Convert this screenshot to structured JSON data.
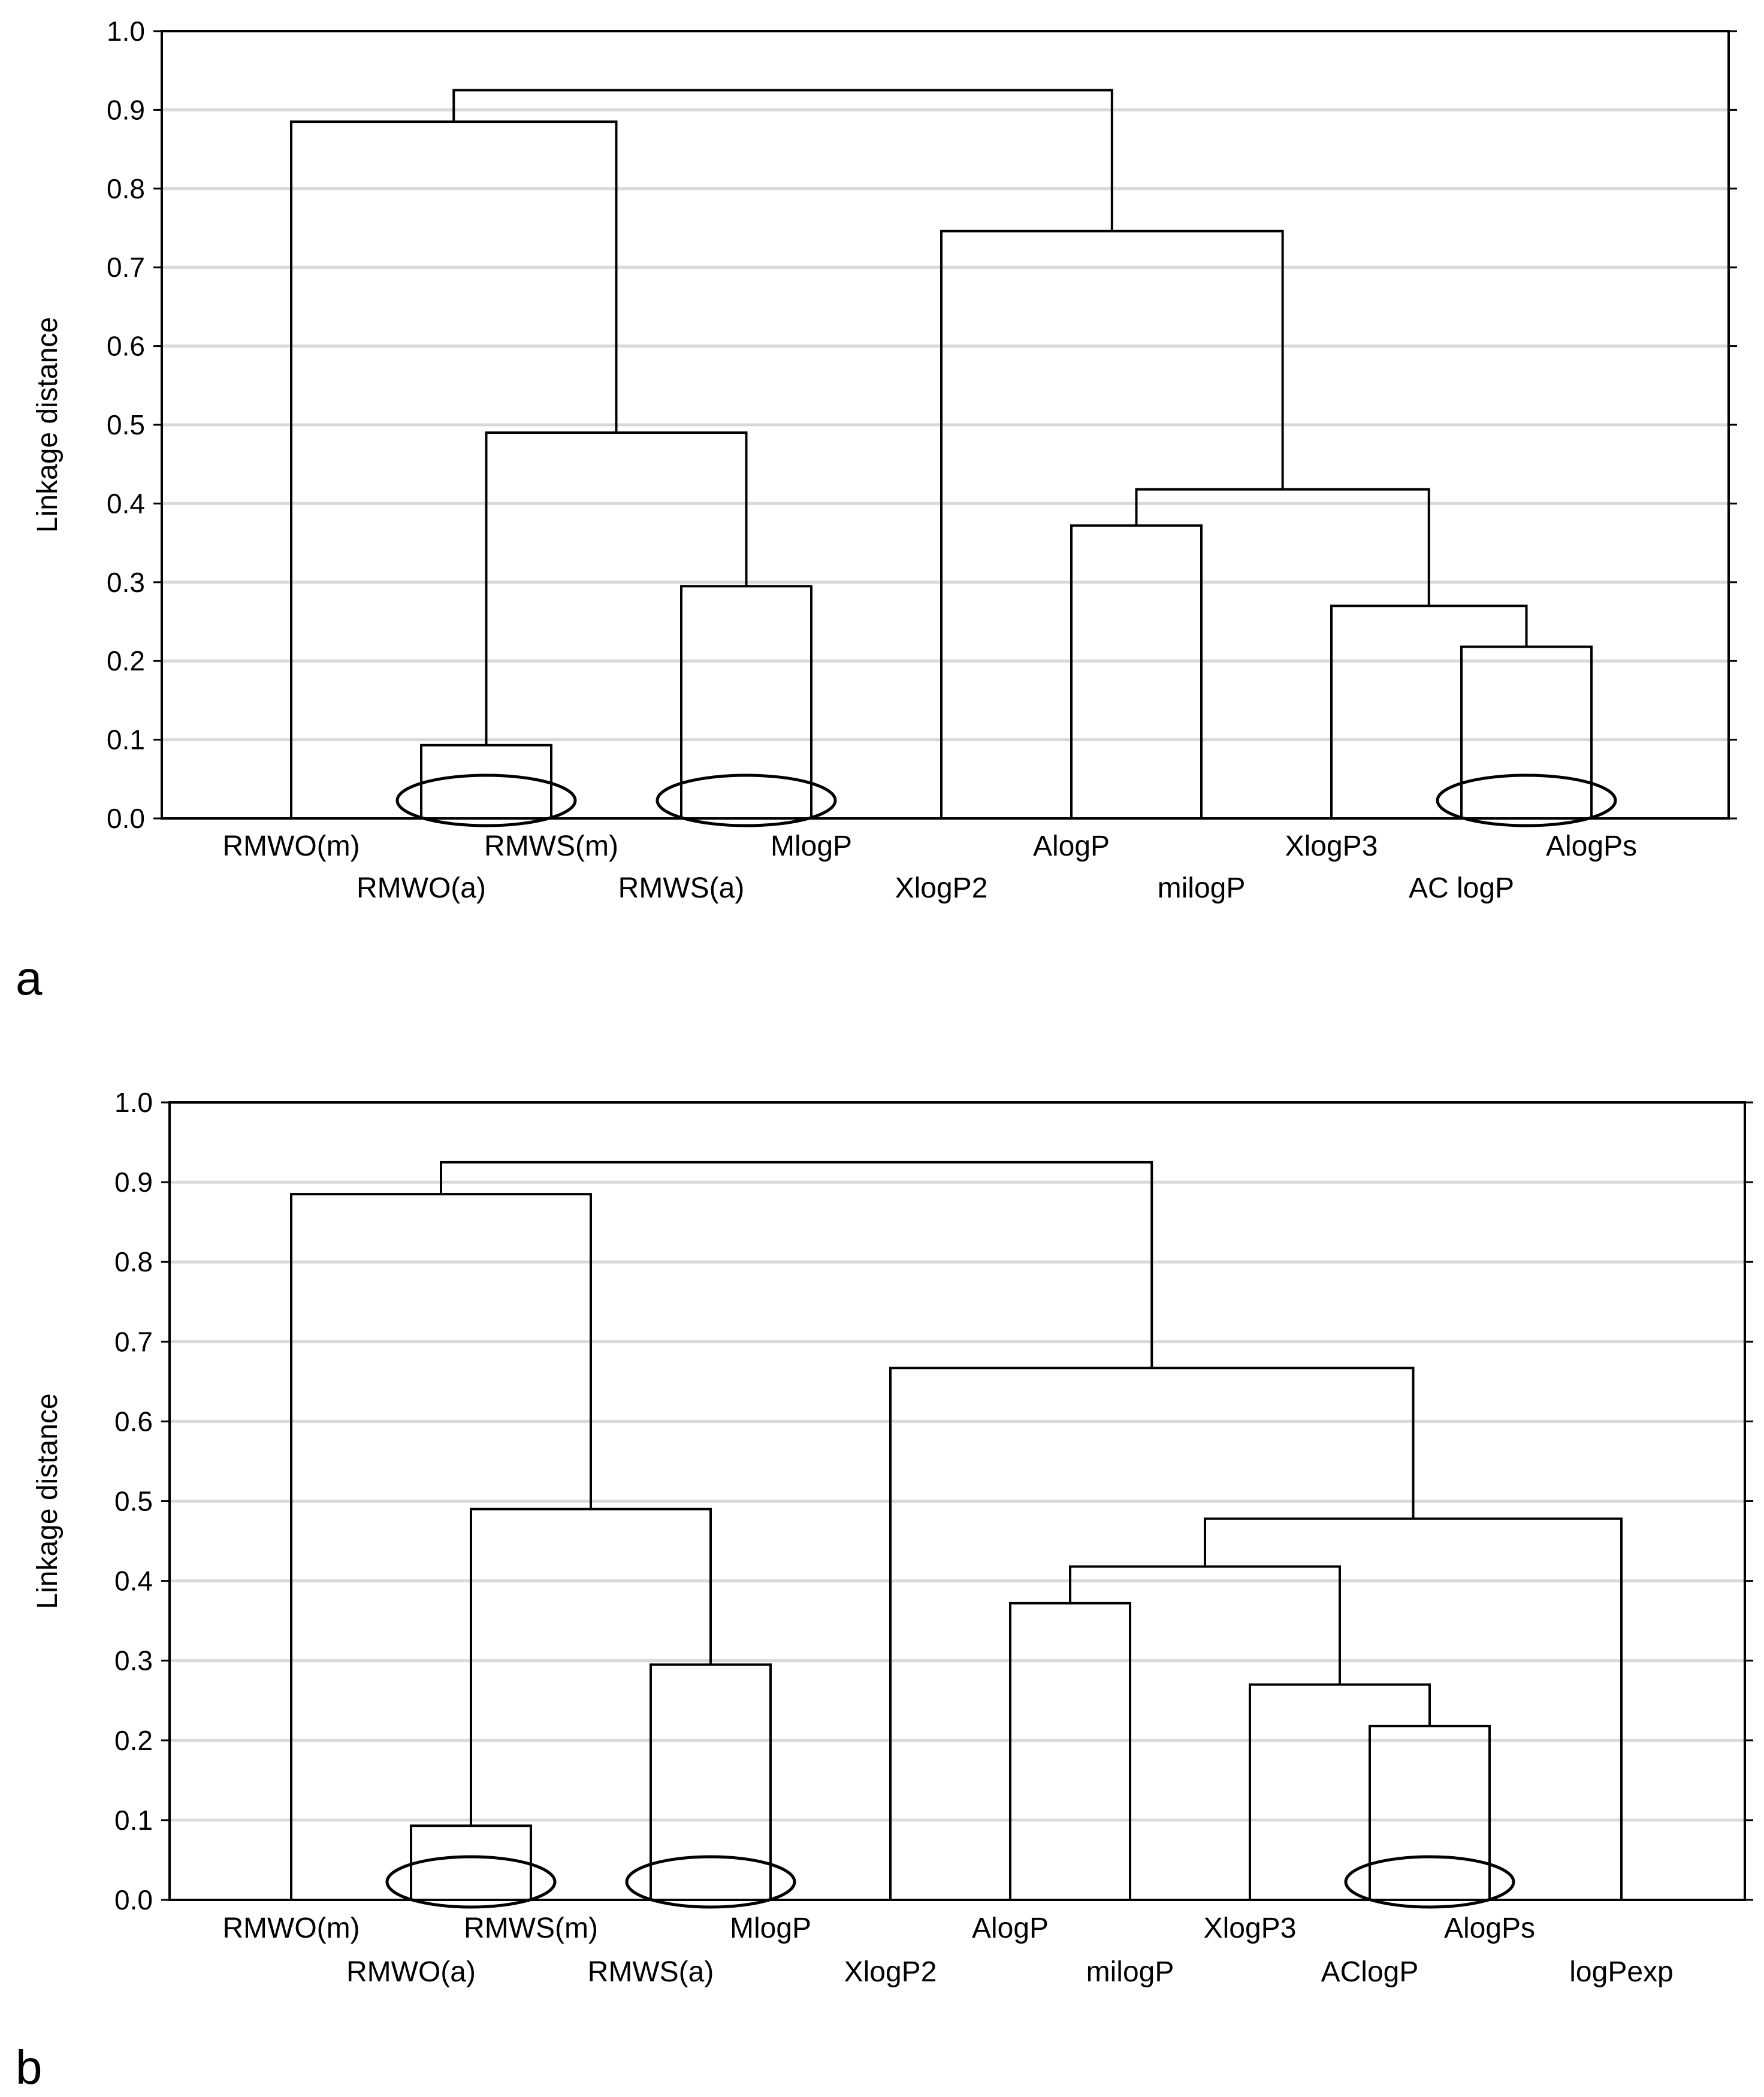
{
  "chart_data": [
    {
      "type": "dendrogram",
      "panel_label": "a",
      "ylabel": "Linkage distance",
      "ylim": [
        0.0,
        1.0
      ],
      "yticks": [
        "0.0",
        "0.1",
        "0.2",
        "0.3",
        "0.4",
        "0.5",
        "0.6",
        "0.7",
        "0.8",
        "0.9",
        "1.0"
      ],
      "grid": true,
      "leaves": [
        "RMWO(m)",
        "RMWO(a)",
        "RMWS(m)",
        "RMWS(a)",
        "MlogP",
        "XlogP2",
        "AlogP",
        "milogP",
        "XlogP3",
        "AC logP",
        "AlogPs"
      ],
      "merges": [
        {
          "left": 1,
          "right": 2,
          "height": 0.093
        },
        {
          "left": 3,
          "right": 4,
          "height": 0.295
        },
        {
          "left": 9,
          "right": 10,
          "height": 0.218
        },
        {
          "left": 8,
          "right": "c2",
          "height": 0.27
        },
        {
          "left": 6,
          "right": 7,
          "height": 0.372
        },
        {
          "left": "c4",
          "right": "c3",
          "height": 0.418
        },
        {
          "left": "c0",
          "right": "c1",
          "height": 0.49
        },
        {
          "left": 5,
          "right": "c5",
          "height": 0.746
        },
        {
          "left": 0,
          "right": "c6",
          "height": 0.885
        },
        {
          "left": "c8",
          "right": "c7",
          "height": 0.925
        }
      ],
      "highlighted_pairs": [
        [
          1,
          2
        ],
        [
          3,
          4
        ],
        [
          9,
          10
        ]
      ]
    },
    {
      "type": "dendrogram",
      "panel_label": "b",
      "ylabel": "Linkage distance",
      "ylim": [
        0.0,
        1.0
      ],
      "yticks": [
        "0.0",
        "0.1",
        "0.2",
        "0.3",
        "0.4",
        "0.5",
        "0.6",
        "0.7",
        "0.8",
        "0.9",
        "1.0"
      ],
      "grid": true,
      "leaves": [
        "RMWO(m)",
        "RMWO(a)",
        "RMWS(m)",
        "RMWS(a)",
        "MlogP",
        "XlogP2",
        "AlogP",
        "milogP",
        "XlogP3",
        "AClogP",
        "AlogPs",
        "logPexp"
      ],
      "merges": [
        {
          "left": 1,
          "right": 2,
          "height": 0.093
        },
        {
          "left": 3,
          "right": 4,
          "height": 0.295
        },
        {
          "left": 9,
          "right": 10,
          "height": 0.218
        },
        {
          "left": 8,
          "right": "c2",
          "height": 0.27
        },
        {
          "left": 6,
          "right": 7,
          "height": 0.372
        },
        {
          "left": "c4",
          "right": "c3",
          "height": 0.418
        },
        {
          "left": "c5",
          "right": 11,
          "height": 0.478
        },
        {
          "left": "c0",
          "right": "c1",
          "height": 0.49
        },
        {
          "left": 5,
          "right": "c6",
          "height": 0.667
        },
        {
          "left": 0,
          "right": "c7",
          "height": 0.885
        },
        {
          "left": "c9",
          "right": "c8",
          "height": 0.925
        }
      ],
      "highlighted_pairs": [
        [
          1,
          2
        ],
        [
          3,
          4
        ],
        [
          9,
          10
        ]
      ]
    }
  ]
}
